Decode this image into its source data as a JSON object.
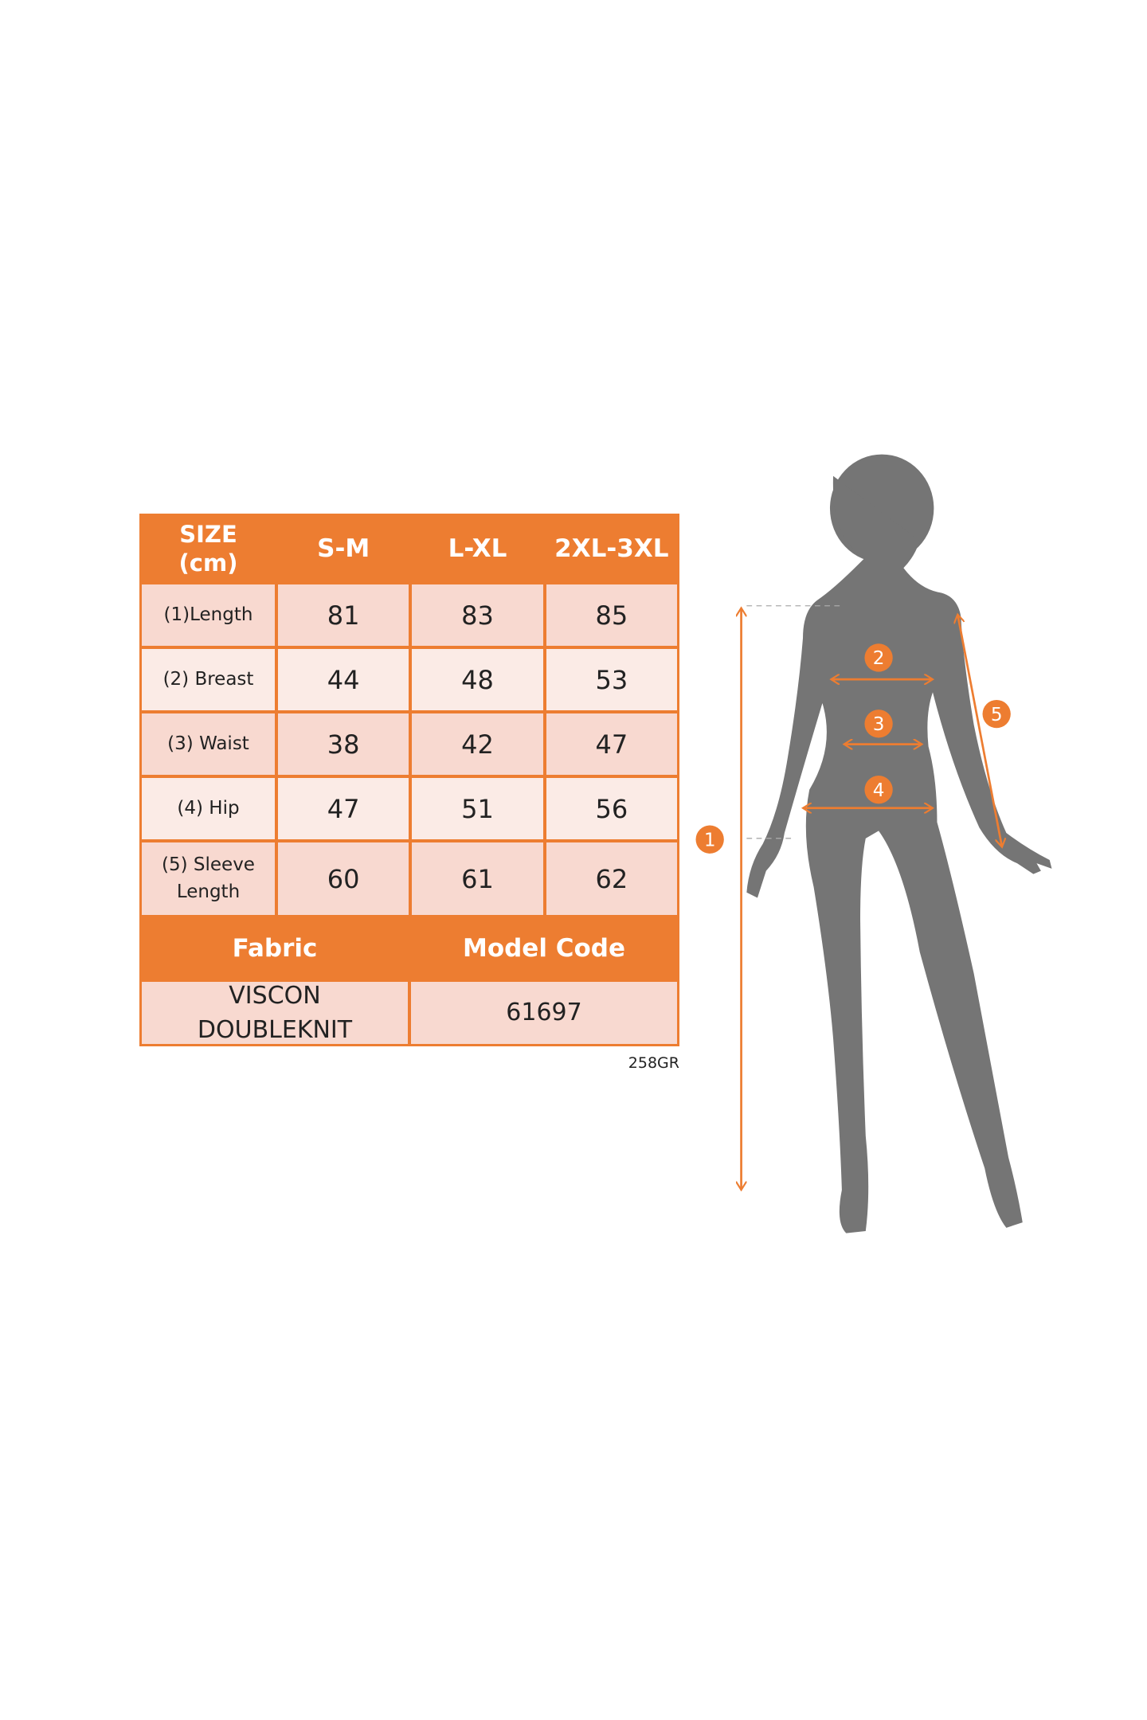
{
  "size_table": {
    "header": {
      "label": "SIZE\n(cm)",
      "label_line1": "SIZE",
      "label_line2": "(cm)",
      "sizes": [
        "S-M",
        "L-XL",
        "2XL-3XL"
      ]
    },
    "rows": [
      {
        "label": "(1)Length",
        "values": [
          "81",
          "83",
          "85"
        ]
      },
      {
        "label": "(2) Breast",
        "values": [
          "44",
          "48",
          "53"
        ]
      },
      {
        "label": "(3) Waist",
        "values": [
          "38",
          "42",
          "47"
        ]
      },
      {
        "label": "(4) Hip",
        "values": [
          "47",
          "51",
          "56"
        ]
      },
      {
        "label_line1": "(5) Sleeve",
        "label_line2": "Length",
        "values": [
          "60",
          "61",
          "62"
        ]
      }
    ],
    "fabric_header": "Fabric",
    "model_code_header": "Model Code",
    "fabric_line1": "VISCON",
    "fabric_line2": "DOUBLEKNIT",
    "model_code": "61697"
  },
  "product_code": "258GR",
  "diagram": {
    "markers": [
      "1",
      "2",
      "3",
      "4",
      "5"
    ],
    "accent_color": "#ED7D31",
    "silhouette_color": "#757575"
  }
}
